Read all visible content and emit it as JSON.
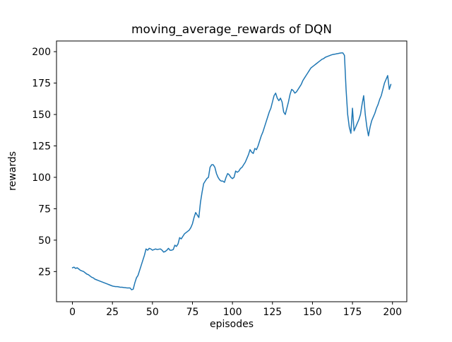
{
  "chart_data": {
    "type": "line",
    "title": "moving_average_rewards of DQN",
    "xlabel": "episodes",
    "ylabel": "rewards",
    "xlim": [
      -9.95,
      208.95
    ],
    "ylim": [
      1,
      208.5
    ],
    "xticks": [
      0,
      25,
      50,
      75,
      100,
      125,
      150,
      175,
      200
    ],
    "yticks": [
      25,
      50,
      75,
      100,
      125,
      150,
      175,
      200
    ],
    "grid": false,
    "legend_position": "none",
    "line_color": "#1f77b4",
    "axis_color": "#000000",
    "background_color": "#ffffff",
    "series": [
      {
        "name": "moving_average_rewards",
        "points": [
          [
            0,
            28
          ],
          [
            1,
            28.5
          ],
          [
            2,
            27.5
          ],
          [
            3,
            28
          ],
          [
            4,
            27
          ],
          [
            5,
            26
          ],
          [
            6,
            25.5
          ],
          [
            7,
            25
          ],
          [
            8,
            24
          ],
          [
            9,
            23
          ],
          [
            10,
            22.5
          ],
          [
            11,
            21.5
          ],
          [
            12,
            20.5
          ],
          [
            13,
            20
          ],
          [
            14,
            19
          ],
          [
            15,
            18.5
          ],
          [
            16,
            18
          ],
          [
            17,
            17.5
          ],
          [
            18,
            17
          ],
          [
            19,
            16.5
          ],
          [
            20,
            16
          ],
          [
            21,
            15.5
          ],
          [
            22,
            15
          ],
          [
            23,
            14.5
          ],
          [
            24,
            14
          ],
          [
            25,
            13.5
          ],
          [
            26,
            13.2
          ],
          [
            27,
            13
          ],
          [
            28,
            13
          ],
          [
            29,
            12.8
          ],
          [
            30,
            12.5
          ],
          [
            31,
            12.5
          ],
          [
            32,
            12.3
          ],
          [
            33,
            12.2
          ],
          [
            34,
            12
          ],
          [
            35,
            12
          ],
          [
            36,
            12
          ],
          [
            37,
            10.5
          ],
          [
            38,
            11
          ],
          [
            39,
            16
          ],
          [
            40,
            20
          ],
          [
            41,
            22
          ],
          [
            42,
            26
          ],
          [
            43,
            30
          ],
          [
            44,
            34
          ],
          [
            45,
            38
          ],
          [
            46,
            43
          ],
          [
            47,
            42
          ],
          [
            48,
            43.5
          ],
          [
            49,
            43
          ],
          [
            50,
            42
          ],
          [
            51,
            42.5
          ],
          [
            52,
            43
          ],
          [
            53,
            42.5
          ],
          [
            54,
            42.8
          ],
          [
            55,
            43
          ],
          [
            56,
            42
          ],
          [
            57,
            40.5
          ],
          [
            58,
            41
          ],
          [
            59,
            42
          ],
          [
            60,
            43.5
          ],
          [
            61,
            42
          ],
          [
            62,
            42
          ],
          [
            63,
            42.5
          ],
          [
            64,
            46
          ],
          [
            65,
            45
          ],
          [
            66,
            47
          ],
          [
            67,
            52
          ],
          [
            68,
            51
          ],
          [
            69,
            53
          ],
          [
            70,
            55
          ],
          [
            71,
            56
          ],
          [
            72,
            57
          ],
          [
            73,
            58
          ],
          [
            74,
            60
          ],
          [
            75,
            63
          ],
          [
            76,
            68
          ],
          [
            77,
            72
          ],
          [
            78,
            70
          ],
          [
            79,
            68
          ],
          [
            80,
            80
          ],
          [
            81,
            88
          ],
          [
            82,
            95
          ],
          [
            83,
            97
          ],
          [
            84,
            99
          ],
          [
            85,
            100
          ],
          [
            86,
            108
          ],
          [
            87,
            110
          ],
          [
            88,
            110
          ],
          [
            89,
            108
          ],
          [
            90,
            103
          ],
          [
            91,
            100
          ],
          [
            92,
            98
          ],
          [
            93,
            97
          ],
          [
            94,
            97
          ],
          [
            95,
            96
          ],
          [
            96,
            100
          ],
          [
            97,
            103
          ],
          [
            98,
            102
          ],
          [
            99,
            100
          ],
          [
            100,
            99
          ],
          [
            101,
            100
          ],
          [
            102,
            105
          ],
          [
            103,
            104
          ],
          [
            104,
            105
          ],
          [
            105,
            107
          ],
          [
            106,
            108
          ],
          [
            107,
            110
          ],
          [
            108,
            112
          ],
          [
            109,
            115
          ],
          [
            110,
            118
          ],
          [
            111,
            122
          ],
          [
            112,
            120
          ],
          [
            113,
            119
          ],
          [
            114,
            123
          ],
          [
            115,
            122
          ],
          [
            116,
            125
          ],
          [
            117,
            129
          ],
          [
            118,
            133
          ],
          [
            119,
            136
          ],
          [
            120,
            140
          ],
          [
            121,
            144
          ],
          [
            122,
            148
          ],
          [
            123,
            152
          ],
          [
            124,
            155
          ],
          [
            125,
            160
          ],
          [
            126,
            165
          ],
          [
            127,
            167
          ],
          [
            128,
            163
          ],
          [
            129,
            161
          ],
          [
            130,
            163
          ],
          [
            131,
            160
          ],
          [
            132,
            152
          ],
          [
            133,
            150
          ],
          [
            134,
            155
          ],
          [
            135,
            160
          ],
          [
            136,
            166
          ],
          [
            137,
            170
          ],
          [
            138,
            169
          ],
          [
            139,
            167
          ],
          [
            140,
            168
          ],
          [
            141,
            170
          ],
          [
            142,
            172
          ],
          [
            143,
            174
          ],
          [
            144,
            177
          ],
          [
            145,
            179
          ],
          [
            146,
            181
          ],
          [
            147,
            183
          ],
          [
            148,
            185
          ],
          [
            149,
            187
          ],
          [
            150,
            188
          ],
          [
            151,
            189
          ],
          [
            152,
            190
          ],
          [
            153,
            191
          ],
          [
            154,
            192
          ],
          [
            155,
            193
          ],
          [
            156,
            194
          ],
          [
            157,
            194.5
          ],
          [
            158,
            195.5
          ],
          [
            159,
            196
          ],
          [
            160,
            196.5
          ],
          [
            161,
            197
          ],
          [
            162,
            197.5
          ],
          [
            163,
            197.8
          ],
          [
            164,
            198
          ],
          [
            165,
            198.3
          ],
          [
            166,
            198.5
          ],
          [
            167,
            198.8
          ],
          [
            168,
            199
          ],
          [
            169,
            199
          ],
          [
            170,
            197
          ],
          [
            171,
            170
          ],
          [
            172,
            150
          ],
          [
            173,
            140
          ],
          [
            174,
            135
          ],
          [
            175,
            155
          ],
          [
            176,
            137
          ],
          [
            177,
            140
          ],
          [
            178,
            143
          ],
          [
            179,
            146
          ],
          [
            180,
            150
          ],
          [
            181,
            158
          ],
          [
            182,
            165
          ],
          [
            183,
            150
          ],
          [
            184,
            140
          ],
          [
            185,
            133
          ],
          [
            186,
            140
          ],
          [
            187,
            145
          ],
          [
            188,
            148
          ],
          [
            189,
            151
          ],
          [
            190,
            155
          ],
          [
            191,
            158
          ],
          [
            192,
            162
          ],
          [
            193,
            165
          ],
          [
            194,
            170
          ],
          [
            195,
            175
          ],
          [
            196,
            178
          ],
          [
            197,
            181
          ],
          [
            198,
            170
          ],
          [
            199,
            174
          ]
        ]
      }
    ]
  }
}
